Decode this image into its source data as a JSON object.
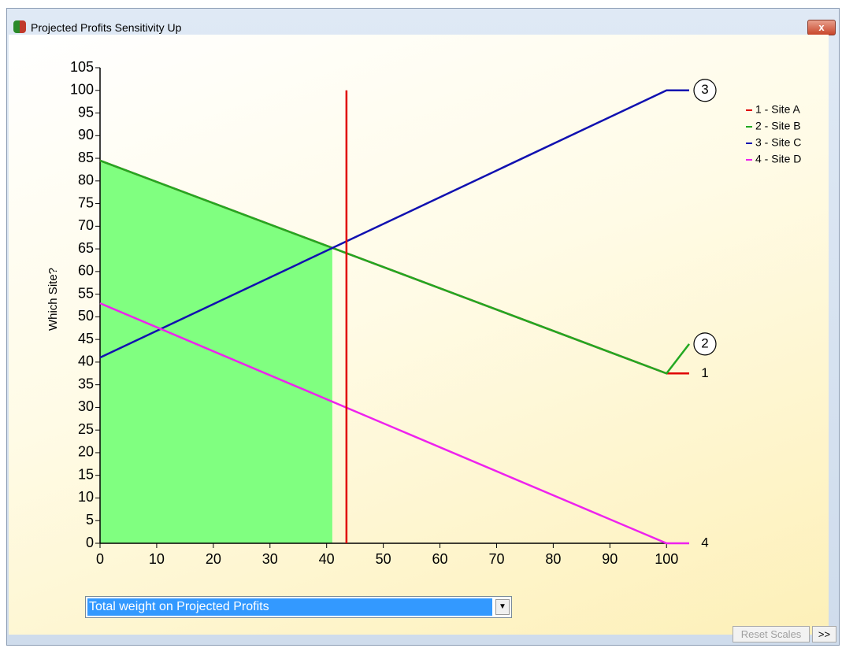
{
  "window": {
    "title": "Projected Profits Sensitivity Up"
  },
  "chart_data": {
    "type": "line",
    "y_label": "Which Site?",
    "x": [
      0,
      100,
      104
    ],
    "series": [
      {
        "name": "1 - Site A",
        "tag": "1",
        "circled": false,
        "color": "#e00000",
        "values": [
          84.5,
          37.5,
          37.5
        ]
      },
      {
        "name": "2 - Site B",
        "tag": "2",
        "circled": true,
        "color": "#22a822",
        "values": [
          84.5,
          37.5,
          44
        ]
      },
      {
        "name": "3 - Site C",
        "tag": "3",
        "circled": true,
        "color": "#1010b0",
        "values": [
          41,
          100,
          100
        ]
      },
      {
        "name": "4 - Site D",
        "tag": "4",
        "circled": false,
        "color": "#ee22ee",
        "values": [
          53,
          0,
          0
        ]
      }
    ],
    "xlim": [
      0,
      104
    ],
    "ylim": [
      0,
      105
    ],
    "xticks": [
      0,
      10,
      20,
      30,
      40,
      50,
      60,
      70,
      80,
      90,
      100
    ],
    "yticks": [
      0,
      5,
      10,
      15,
      20,
      25,
      30,
      35,
      40,
      45,
      50,
      55,
      60,
      65,
      70,
      75,
      80,
      85,
      90,
      95,
      100,
      105
    ],
    "marker": {
      "x": 43.5,
      "y": [
        0,
        100
      ],
      "color": "#e00000"
    },
    "shaded": {
      "x": [
        0,
        41
      ],
      "series": 1,
      "color": "#80ff80"
    }
  },
  "dropdown": {
    "value": "Total weight on Projected Profits"
  },
  "buttons": [
    "Reset Scales",
    ">>"
  ]
}
